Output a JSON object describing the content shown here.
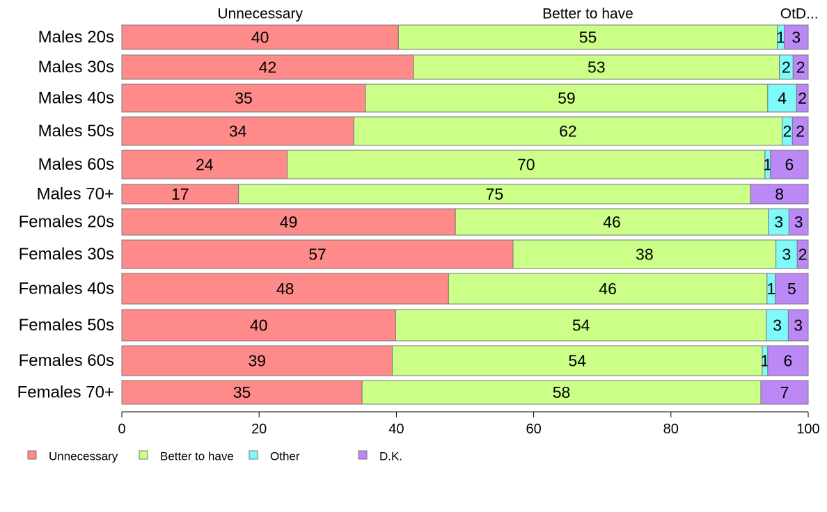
{
  "chart_data": {
    "type": "bar",
    "orientation": "horizontal",
    "stacked": true,
    "categories": [
      "Males 20s",
      "Males 30s",
      "Males 40s",
      "Males 50s",
      "Males 60s",
      "Males 70+",
      "Females 20s",
      "Females 30s",
      "Females 40s",
      "Females 50s",
      "Females 60s",
      "Females 70+"
    ],
    "series": [
      {
        "name": "Unnecessary",
        "color": "#ff8a8a",
        "values": [
          40.3,
          42.5,
          35.5,
          33.8,
          24.1,
          17.0,
          48.6,
          57.0,
          47.6,
          39.9,
          39.4,
          35.0
        ]
      },
      {
        "name": "Better to have",
        "color": "#ccff88",
        "values": [
          55.2,
          53.3,
          58.6,
          62.4,
          69.6,
          74.6,
          45.6,
          38.3,
          46.4,
          54.0,
          53.9,
          58.1
        ]
      },
      {
        "name": "Other",
        "color": "#7ffafa",
        "values": [
          1.0,
          2.0,
          4.2,
          1.5,
          0.8,
          0.0,
          3.0,
          3.1,
          1.2,
          3.2,
          0.8,
          0.0
        ]
      },
      {
        "name": "D.K.",
        "color": "#bb88f5",
        "values": [
          3.5,
          2.2,
          1.7,
          2.3,
          5.5,
          8.4,
          2.8,
          1.6,
          4.8,
          2.9,
          5.9,
          6.9
        ]
      }
    ],
    "bar_labels": [
      [
        "40",
        "55",
        "1",
        "3"
      ],
      [
        "42",
        "53",
        "2",
        "2"
      ],
      [
        "35",
        "59",
        "4",
        "2"
      ],
      [
        "34",
        "62",
        "2",
        "2"
      ],
      [
        "24",
        "70",
        "1",
        "6"
      ],
      [
        "17",
        "75",
        "",
        "8"
      ],
      [
        "49",
        "46",
        "3",
        "3"
      ],
      [
        "57",
        "38",
        "3",
        "2"
      ],
      [
        "48",
        "46",
        "1",
        "5"
      ],
      [
        "40",
        "54",
        "3",
        "3"
      ],
      [
        "39",
        "54",
        "1",
        "6"
      ],
      [
        "35",
        "58",
        "",
        "7"
      ]
    ],
    "column_labels": [
      "Unnecessary",
      "Better to have",
      "OtD..."
    ],
    "xlim": [
      0,
      100
    ],
    "xticks": [
      "0",
      "20",
      "40",
      "60",
      "80",
      "100"
    ],
    "grid": false,
    "legend_position": "bottom-left",
    "legend": [
      "Unnecessary",
      "Better to have",
      "Other",
      "D.K."
    ]
  }
}
